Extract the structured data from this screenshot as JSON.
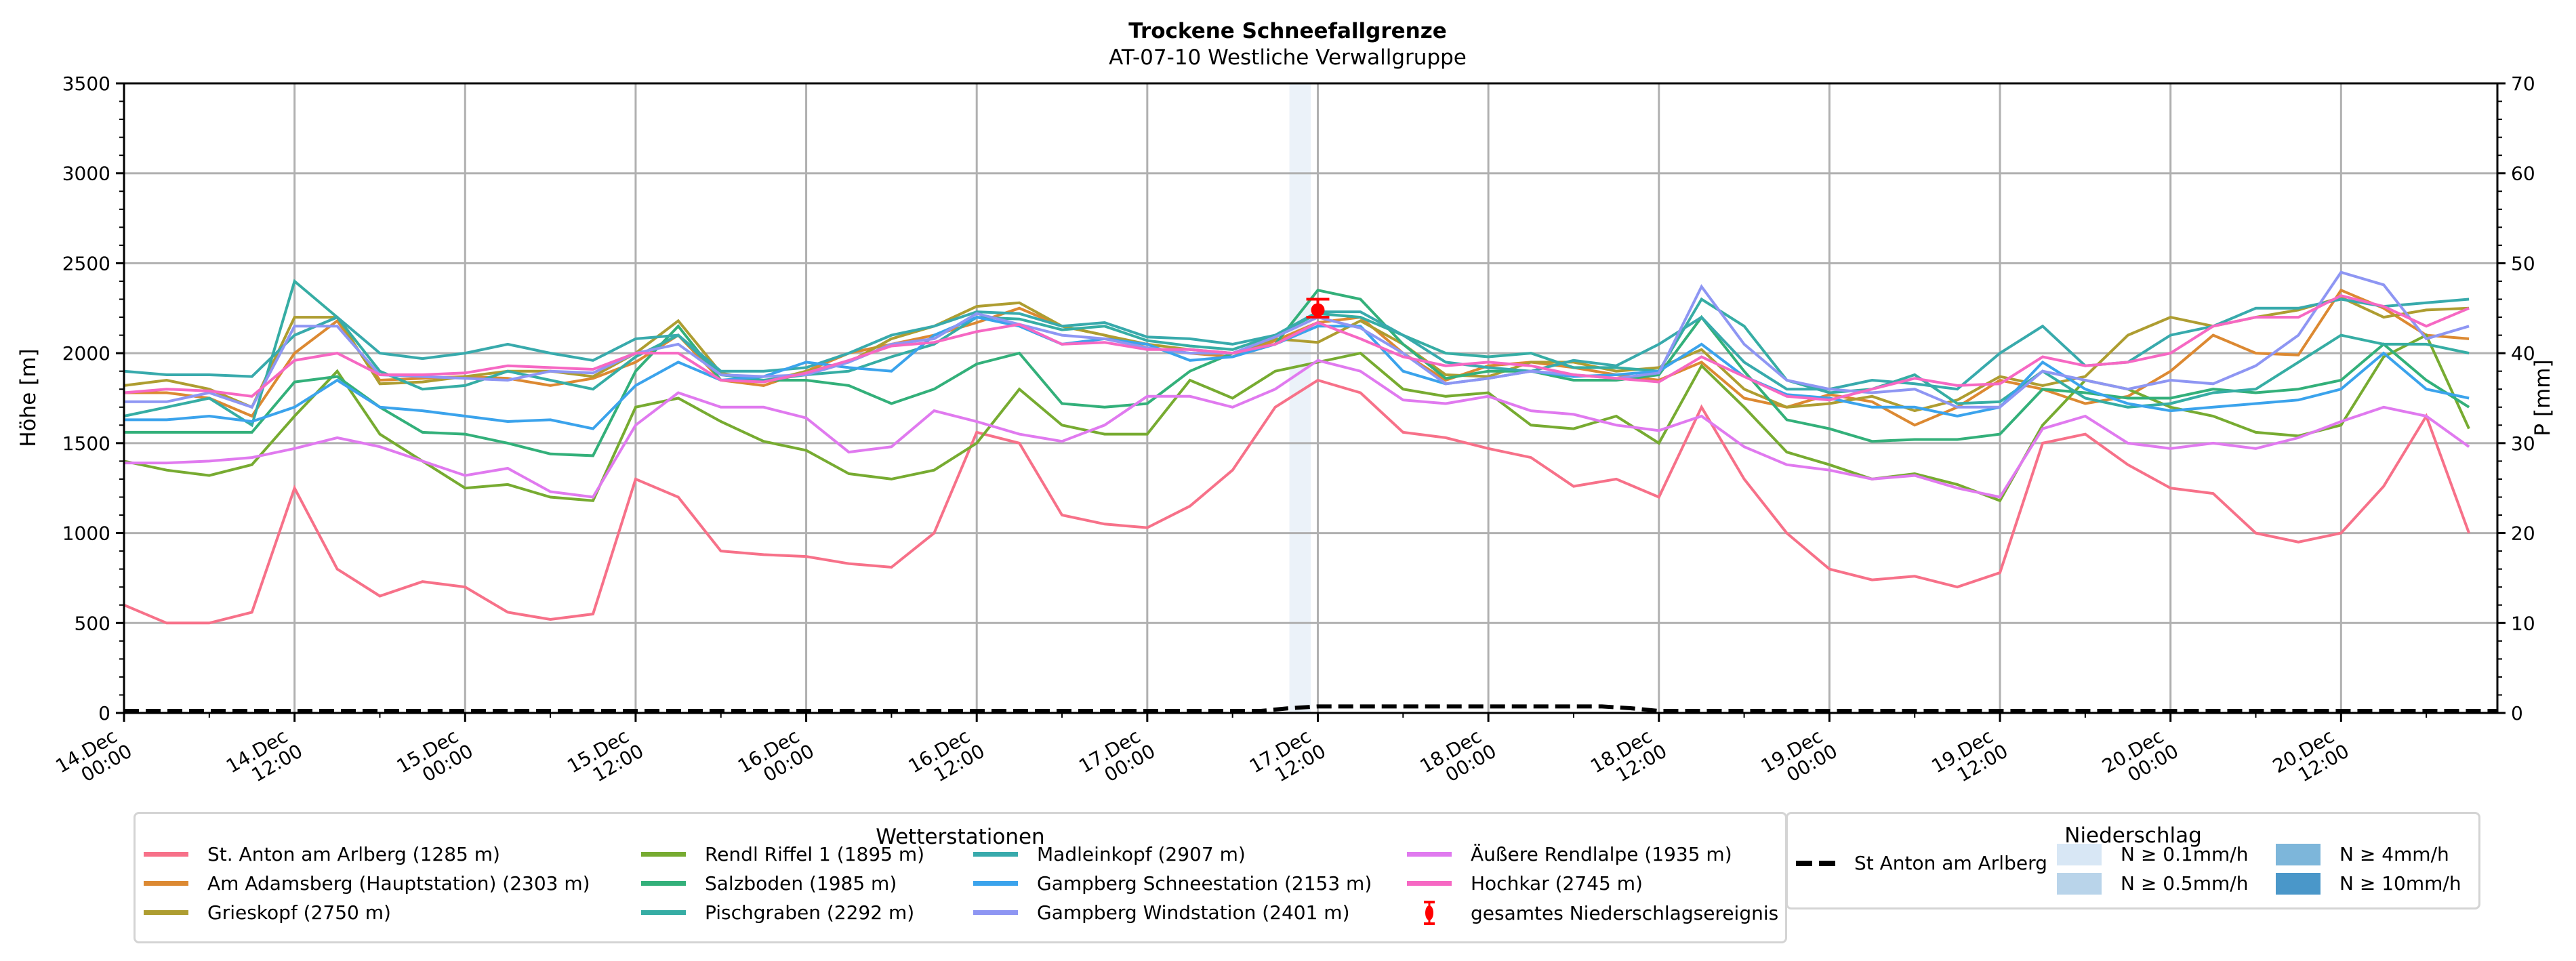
{
  "chart_data": {
    "type": "line",
    "title": "Trockene Schneefallgrenze",
    "subtitle": "AT-07-10 Westliche Verwallgruppe",
    "ylabel": "Höhe [m]",
    "ylabel_right": "P [mm]",
    "ylim": [
      0,
      3500
    ],
    "ylim_right": [
      0,
      70
    ],
    "yticks": [
      "0",
      "500",
      "1000",
      "1500",
      "2000",
      "2500",
      "3000",
      "3500"
    ],
    "yticks_right": [
      "0",
      "10",
      "20",
      "30",
      "40",
      "50",
      "60",
      "70"
    ],
    "grid": true,
    "x_unit": "hours since 14.Dec 00:00",
    "xlim": [
      0,
      167
    ],
    "xticks": [
      {
        "h": 0,
        "line1": "14.Dec",
        "line2": "00:00"
      },
      {
        "h": 12,
        "line1": "14.Dec",
        "line2": "12:00"
      },
      {
        "h": 24,
        "line1": "15.Dec",
        "line2": "00:00"
      },
      {
        "h": 36,
        "line1": "15.Dec",
        "line2": "12:00"
      },
      {
        "h": 48,
        "line1": "16.Dec",
        "line2": "00:00"
      },
      {
        "h": 60,
        "line1": "16.Dec",
        "line2": "12:00"
      },
      {
        "h": 72,
        "line1": "17.Dec",
        "line2": "00:00"
      },
      {
        "h": 84,
        "line1": "17.Dec",
        "line2": "12:00"
      },
      {
        "h": 96,
        "line1": "18.Dec",
        "line2": "00:00"
      },
      {
        "h": 108,
        "line1": "18.Dec",
        "line2": "12:00"
      },
      {
        "h": 120,
        "line1": "19.Dec",
        "line2": "00:00"
      },
      {
        "h": 132,
        "line1": "19.Dec",
        "line2": "12:00"
      },
      {
        "h": 144,
        "line1": "20.Dec",
        "line2": "00:00"
      },
      {
        "h": 156,
        "line1": "20.Dec",
        "line2": "12:00"
      }
    ],
    "x": [
      0,
      3,
      6,
      9,
      12,
      15,
      18,
      21,
      24,
      27,
      30,
      33,
      36,
      39,
      42,
      45,
      48,
      51,
      54,
      57,
      60,
      63,
      66,
      69,
      72,
      75,
      78,
      81,
      84,
      87,
      90,
      93,
      96,
      99,
      102,
      105,
      108,
      111,
      114,
      117,
      120,
      123,
      126,
      129,
      132,
      135,
      138,
      141,
      144,
      147,
      150,
      153,
      156,
      159,
      162,
      165
    ],
    "series": [
      {
        "name": "St. Anton am Arlberg (1285 m)",
        "color": "#f77189",
        "values": [
          600,
          500,
          500,
          560,
          1250,
          800,
          650,
          730,
          700,
          560,
          520,
          550,
          1300,
          1200,
          900,
          880,
          870,
          830,
          810,
          1000,
          1560,
          1500,
          1100,
          1050,
          1030,
          1150,
          1350,
          1700,
          1850,
          1780,
          1560,
          1530,
          1470,
          1420,
          1260,
          1300,
          1200,
          1700,
          1300,
          1000,
          800,
          740,
          760,
          700,
          780,
          1500,
          1550,
          1380,
          1250,
          1220,
          1000,
          950,
          1000,
          1260,
          1650,
          1000
        ]
      },
      {
        "name": "Am Adamsberg (Hauptstation) (2303 m)",
        "color": "#dc8932",
        "values": [
          1780,
          1780,
          1750,
          1650,
          2000,
          2180,
          1850,
          1860,
          1870,
          1860,
          1820,
          1860,
          1950,
          2100,
          1850,
          1820,
          1900,
          2000,
          2050,
          2100,
          2170,
          2250,
          2150,
          2100,
          2030,
          2000,
          1980,
          2070,
          2170,
          2200,
          2000,
          1850,
          1930,
          1950,
          1920,
          1880,
          1850,
          1950,
          1750,
          1700,
          1770,
          1730,
          1600,
          1700,
          1850,
          1800,
          1720,
          1760,
          1900,
          2100,
          2000,
          1990,
          2350,
          2250,
          2100,
          2080
        ]
      },
      {
        "name": "Grieskopf (2750 m)",
        "color": "#ae9d31",
        "values": [
          1820,
          1850,
          1800,
          1700,
          2200,
          2200,
          1830,
          1840,
          1870,
          1900,
          1900,
          1870,
          2000,
          2180,
          1890,
          1840,
          1900,
          1950,
          2080,
          2150,
          2260,
          2280,
          2150,
          2100,
          2050,
          2020,
          2000,
          2080,
          2060,
          2180,
          2050,
          1880,
          1870,
          1950,
          1950,
          1900,
          1920,
          2020,
          1800,
          1700,
          1720,
          1760,
          1680,
          1740,
          1870,
          1820,
          1870,
          2100,
          2200,
          2150,
          2200,
          2240,
          2310,
          2200,
          2240,
          2250
        ]
      },
      {
        "name": "Rendl Riffel 1 (1895 m)",
        "color": "#77ab31",
        "values": [
          1400,
          1350,
          1320,
          1380,
          1650,
          1900,
          1550,
          1400,
          1250,
          1270,
          1200,
          1180,
          1700,
          1750,
          1620,
          1510,
          1460,
          1330,
          1300,
          1350,
          1500,
          1800,
          1600,
          1550,
          1550,
          1850,
          1750,
          1900,
          1950,
          2000,
          1800,
          1760,
          1780,
          1600,
          1580,
          1650,
          1500,
          1930,
          1700,
          1450,
          1380,
          1300,
          1330,
          1270,
          1180,
          1600,
          1850,
          1800,
          1700,
          1650,
          1560,
          1540,
          1600,
          1980,
          2100,
          1580
        ]
      },
      {
        "name": "Salzboden (1985 m)",
        "color": "#33b07a",
        "values": [
          1560,
          1560,
          1560,
          1560,
          1840,
          1870,
          1700,
          1560,
          1550,
          1500,
          1440,
          1430,
          1900,
          2150,
          1850,
          1850,
          1850,
          1820,
          1720,
          1800,
          1940,
          2000,
          1720,
          1700,
          1720,
          1900,
          2000,
          2050,
          2350,
          2300,
          2050,
          1860,
          1900,
          1900,
          1850,
          1850,
          1880,
          2200,
          1900,
          1630,
          1580,
          1510,
          1520,
          1520,
          1550,
          1800,
          1780,
          1750,
          1750,
          1800,
          1780,
          1800,
          1850,
          2050,
          1850,
          1700
        ]
      },
      {
        "name": "Pischgraben (2292 m)",
        "color": "#36ada4",
        "values": [
          1650,
          1700,
          1750,
          1600,
          2400,
          2200,
          1900,
          1800,
          1820,
          1900,
          1850,
          1800,
          1980,
          2100,
          1880,
          1850,
          1880,
          1900,
          1980,
          2050,
          2200,
          2190,
          2130,
          2150,
          2070,
          2040,
          2020,
          2100,
          2220,
          2200,
          2100,
          2000,
          1980,
          2000,
          1920,
          1920,
          1900,
          2300,
          2150,
          1850,
          1780,
          1800,
          1880,
          1720,
          1730,
          1900,
          1750,
          1700,
          1720,
          1780,
          1800,
          1950,
          2100,
          2050,
          2050,
          2000
        ]
      },
      {
        "name": "Madleinkopf (2907 m)",
        "color": "#38aaac",
        "values": [
          1900,
          1880,
          1880,
          1870,
          2100,
          2200,
          2000,
          1970,
          2000,
          2050,
          2000,
          1960,
          2080,
          2100,
          1900,
          1900,
          1920,
          2000,
          2100,
          2150,
          2230,
          2220,
          2150,
          2170,
          2090,
          2080,
          2050,
          2100,
          2230,
          2230,
          2100,
          1950,
          1920,
          1900,
          1960,
          1930,
          2050,
          2200,
          1950,
          1800,
          1800,
          1850,
          1830,
          1800,
          2000,
          2150,
          1930,
          1950,
          2100,
          2150,
          2250,
          2250,
          2300,
          2260,
          2280,
          2300
        ]
      },
      {
        "name": "Gampberg Schneestation (2153 m)",
        "color": "#3ba3ec",
        "values": [
          1630,
          1630,
          1650,
          1620,
          1700,
          1850,
          1700,
          1680,
          1650,
          1620,
          1630,
          1580,
          1820,
          1950,
          1850,
          1870,
          1950,
          1920,
          1900,
          2100,
          2200,
          2150,
          2050,
          2080,
          2050,
          1960,
          1980,
          2050,
          2150,
          2150,
          1900,
          1830,
          1860,
          1900,
          1870,
          1880,
          1900,
          2050,
          1870,
          1770,
          1750,
          1700,
          1700,
          1650,
          1700,
          1950,
          1800,
          1720,
          1680,
          1700,
          1720,
          1740,
          1800,
          2000,
          1800,
          1750
        ]
      },
      {
        "name": "Gampberg Windstation (2401 m)",
        "color": "#8e96f3",
        "values": [
          1730,
          1730,
          1780,
          1700,
          2150,
          2150,
          1880,
          1870,
          1860,
          1850,
          1900,
          1890,
          2000,
          2050,
          1880,
          1870,
          1880,
          1950,
          2050,
          2080,
          2220,
          2160,
          2100,
          2080,
          2030,
          2000,
          2000,
          2090,
          2200,
          2140,
          2000,
          1830,
          1860,
          1900,
          1880,
          1860,
          1890,
          2370,
          2050,
          1850,
          1800,
          1780,
          1800,
          1700,
          1700,
          1900,
          1850,
          1800,
          1850,
          1830,
          1930,
          2100,
          2450,
          2380,
          2080,
          2150
        ]
      },
      {
        "name": "Äußere Rendlalpe (1935 m)",
        "color": "#e07aef",
        "values": [
          1390,
          1390,
          1400,
          1420,
          1470,
          1530,
          1480,
          1400,
          1320,
          1360,
          1230,
          1200,
          1600,
          1780,
          1700,
          1700,
          1640,
          1450,
          1480,
          1680,
          1620,
          1550,
          1510,
          1600,
          1760,
          1760,
          1700,
          1800,
          1960,
          1900,
          1740,
          1720,
          1760,
          1680,
          1660,
          1600,
          1570,
          1650,
          1480,
          1380,
          1350,
          1300,
          1320,
          1250,
          1200,
          1580,
          1650,
          1500,
          1470,
          1500,
          1470,
          1530,
          1620,
          1700,
          1650,
          1480
        ]
      },
      {
        "name": "Hochkar (2745 m)",
        "color": "#f668c3",
        "values": [
          1780,
          1800,
          1790,
          1760,
          1960,
          2000,
          1880,
          1880,
          1890,
          1930,
          1920,
          1910,
          2000,
          2000,
          1850,
          1840,
          1890,
          1960,
          2040,
          2060,
          2120,
          2160,
          2050,
          2060,
          2020,
          2020,
          2000,
          2050,
          2170,
          2080,
          1980,
          1930,
          1950,
          1930,
          1880,
          1860,
          1840,
          1980,
          1870,
          1760,
          1740,
          1800,
          1860,
          1820,
          1830,
          1980,
          1930,
          1950,
          2000,
          2150,
          2200,
          2200,
          2320,
          2260,
          2150,
          2250
        ]
      }
    ],
    "precipitation": {
      "name": "St Anton am Arlberg",
      "unit": "mm",
      "style": "dashed",
      "x": [
        0,
        80,
        82,
        84,
        104,
        106,
        108,
        167
      ],
      "values": [
        0,
        0,
        0.3,
        0.5,
        0.5,
        0.3,
        0,
        0
      ]
    },
    "precip_intensity_bands": [
      {
        "label": "N ≥ 0.1mm/h",
        "color": "#d7e6f4",
        "ranges": [
          [
            82,
            83.5
          ]
        ]
      }
    ],
    "event_marker": {
      "label": "gesamtes Niederschlagsereignis",
      "color": "#ff0000",
      "x": 84,
      "y": 2240,
      "y_low": 2200,
      "y_high": 2300
    },
    "legends": {
      "stations": {
        "title": "Wetterstationen"
      },
      "precipitation": {
        "title": "Niederschlag",
        "line_label": "St Anton am Arlberg",
        "patches": [
          {
            "label": "N ≥ 0.1mm/h",
            "color": "#d8e7f5"
          },
          {
            "label": "N ≥ 0.5mm/h",
            "color": "#b9d4ea"
          },
          {
            "label": "N ≥ 4mm/h",
            "color": "#7db6da"
          },
          {
            "label": "N ≥ 10mm/h",
            "color": "#4a97c9"
          }
        ]
      }
    }
  }
}
